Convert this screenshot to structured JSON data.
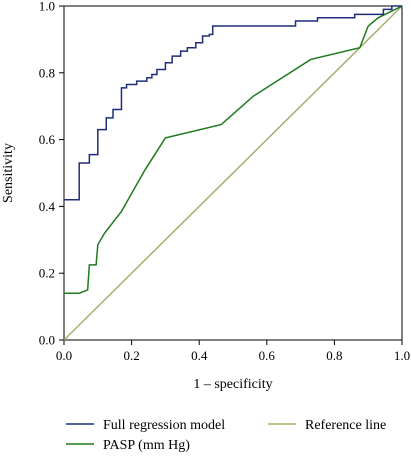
{
  "chart_data": {
    "type": "line",
    "xlabel": "1 – specificity",
    "ylabel": "Sensitivity",
    "xlim": [
      0.0,
      1.0
    ],
    "ylim": [
      0.0,
      1.0
    ],
    "x_ticks": [
      "0.0",
      "0.2",
      "0.4",
      "0.6",
      "0.8",
      "1.0"
    ],
    "y_ticks": [
      "0.0",
      "0.2",
      "0.4",
      "0.6",
      "0.8",
      "1.0"
    ],
    "grid": false,
    "legend_position": "bottom",
    "series": [
      {
        "name": "Full regression model",
        "color": "#1f2d7a",
        "style": "step",
        "points": [
          [
            0.0,
            0.42
          ],
          [
            0.045,
            0.42
          ],
          [
            0.045,
            0.53
          ],
          [
            0.075,
            0.53
          ],
          [
            0.075,
            0.555
          ],
          [
            0.1,
            0.555
          ],
          [
            0.1,
            0.63
          ],
          [
            0.125,
            0.63
          ],
          [
            0.125,
            0.665
          ],
          [
            0.145,
            0.665
          ],
          [
            0.145,
            0.69
          ],
          [
            0.17,
            0.69
          ],
          [
            0.17,
            0.755
          ],
          [
            0.185,
            0.755
          ],
          [
            0.185,
            0.765
          ],
          [
            0.215,
            0.765
          ],
          [
            0.215,
            0.775
          ],
          [
            0.245,
            0.775
          ],
          [
            0.245,
            0.785
          ],
          [
            0.26,
            0.785
          ],
          [
            0.26,
            0.795
          ],
          [
            0.275,
            0.795
          ],
          [
            0.275,
            0.81
          ],
          [
            0.3,
            0.81
          ],
          [
            0.3,
            0.83
          ],
          [
            0.32,
            0.83
          ],
          [
            0.32,
            0.85
          ],
          [
            0.345,
            0.85
          ],
          [
            0.345,
            0.865
          ],
          [
            0.365,
            0.865
          ],
          [
            0.365,
            0.875
          ],
          [
            0.39,
            0.875
          ],
          [
            0.39,
            0.89
          ],
          [
            0.41,
            0.89
          ],
          [
            0.41,
            0.91
          ],
          [
            0.43,
            0.91
          ],
          [
            0.43,
            0.915
          ],
          [
            0.44,
            0.915
          ],
          [
            0.44,
            0.94
          ],
          [
            0.685,
            0.94
          ],
          [
            0.685,
            0.955
          ],
          [
            0.75,
            0.955
          ],
          [
            0.75,
            0.965
          ],
          [
            0.86,
            0.965
          ],
          [
            0.86,
            0.975
          ],
          [
            0.945,
            0.975
          ],
          [
            0.945,
            0.99
          ],
          [
            0.97,
            0.99
          ],
          [
            0.97,
            1.0
          ],
          [
            1.0,
            1.0
          ]
        ]
      },
      {
        "name": "PASP (mm Hg)",
        "color": "#1e7a1e",
        "style": "line",
        "points": [
          [
            0.0,
            0.14
          ],
          [
            0.045,
            0.14
          ],
          [
            0.07,
            0.15
          ],
          [
            0.075,
            0.225
          ],
          [
            0.095,
            0.225
          ],
          [
            0.1,
            0.285
          ],
          [
            0.12,
            0.32
          ],
          [
            0.17,
            0.385
          ],
          [
            0.24,
            0.51
          ],
          [
            0.3,
            0.605
          ],
          [
            0.465,
            0.645
          ],
          [
            0.56,
            0.73
          ],
          [
            0.73,
            0.84
          ],
          [
            0.875,
            0.875
          ],
          [
            0.9,
            0.94
          ],
          [
            0.93,
            0.965
          ],
          [
            1.0,
            1.0
          ]
        ]
      },
      {
        "name": "Reference line",
        "color": "#a7ad6a",
        "style": "line",
        "points": [
          [
            0.0,
            0.0
          ],
          [
            1.0,
            1.0
          ]
        ]
      }
    ]
  }
}
